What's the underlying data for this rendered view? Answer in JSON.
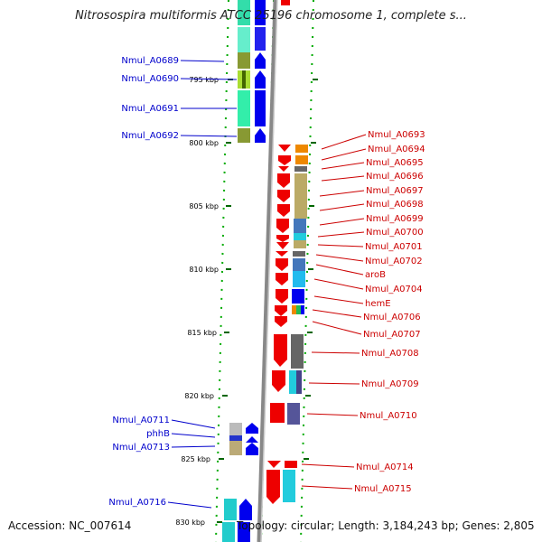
{
  "title": "Nitrosospira multiformis ATCC 25196 chromosome 1, complete s...",
  "footer": {
    "accession": "Accession: NC_007614",
    "summary": "Topology: circular; Length: 3,184,243 bp; Genes: 2,805"
  },
  "colors": {
    "left_label": "#0000cc",
    "right_label": "#cc0000",
    "forward_arrow": "#0000ee",
    "reverse_arrow": "#ee0000",
    "backbone": "#888888",
    "ticks": "#006600"
  },
  "ticks": [
    {
      "label": "795 kbp",
      "kbp": 795
    },
    {
      "label": "800 kbp",
      "kbp": 800
    },
    {
      "label": "805 kbp",
      "kbp": 805
    },
    {
      "label": "810 kbp",
      "kbp": 810
    },
    {
      "label": "815 kbp",
      "kbp": 815
    },
    {
      "label": "820 kbp",
      "kbp": 820
    },
    {
      "label": "825 kbp",
      "kbp": 825
    },
    {
      "label": "830 kbp",
      "kbp": 830
    }
  ],
  "left_genes": [
    {
      "name": "Nmul_A0689"
    },
    {
      "name": "Nmul_A0690"
    },
    {
      "name": "Nmul_A0691"
    },
    {
      "name": "Nmul_A0692"
    },
    {
      "name": "Nmul_A0711"
    },
    {
      "name": "phhB"
    },
    {
      "name": "Nmul_A0713"
    },
    {
      "name": "Nmul_A0716"
    }
  ],
  "right_genes": [
    {
      "name": "Nmul_A0693"
    },
    {
      "name": "Nmul_A0694"
    },
    {
      "name": "Nmul_A0695"
    },
    {
      "name": "Nmul_A0696"
    },
    {
      "name": "Nmul_A0697"
    },
    {
      "name": "Nmul_A0698"
    },
    {
      "name": "Nmul_A0699"
    },
    {
      "name": "Nmul_A0700"
    },
    {
      "name": "Nmul_A0701"
    },
    {
      "name": "Nmul_A0702"
    },
    {
      "name": "aroB"
    },
    {
      "name": "Nmul_A0704"
    },
    {
      "name": "hemE"
    },
    {
      "name": "Nmul_A0706"
    },
    {
      "name": "Nmul_A0707"
    },
    {
      "name": "Nmul_A0708"
    },
    {
      "name": "Nmul_A0709"
    },
    {
      "name": "Nmul_A0710"
    },
    {
      "name": "Nmul_A0714"
    },
    {
      "name": "Nmul_A0715"
    }
  ]
}
